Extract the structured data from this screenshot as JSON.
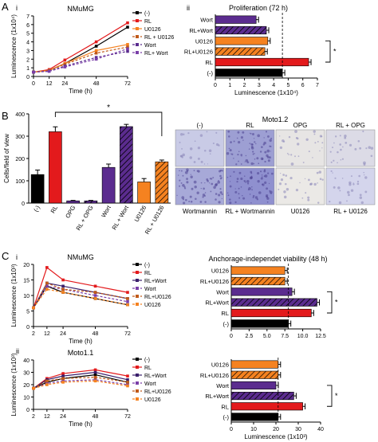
{
  "figure": {
    "panel_labels": [
      "A",
      "B",
      "C"
    ],
    "sub_labels": {
      "A_i": "i",
      "A_ii": "ii",
      "C_i": "i",
      "C_ii": "ii"
    }
  },
  "chart_data": [
    {
      "id": "A_i",
      "type": "line",
      "title": "NMuMG",
      "xlabel": "Time (h)",
      "ylabel": "Luminescence (1x10⁴)",
      "x": [
        0,
        12,
        24,
        48,
        72
      ],
      "x_ticks": [
        "0",
        "12",
        "24",
        "48",
        "72"
      ],
      "ylim": [
        0,
        7
      ],
      "y_ticks": [
        "0",
        "1",
        "2",
        "3",
        "4",
        "5",
        "6",
        "7"
      ],
      "series": [
        {
          "name": "(-)",
          "color": "#000000",
          "values": [
            0.5,
            0.7,
            1.5,
            3.5,
            5.7
          ]
        },
        {
          "name": "RL",
          "color": "#e31a1c",
          "values": [
            0.5,
            0.8,
            1.9,
            4.0,
            6.2
          ]
        },
        {
          "name": "U0126",
          "color": "#f58220",
          "values": [
            0.5,
            0.7,
            1.5,
            3.0,
            3.7
          ]
        },
        {
          "name": "RL + U0126",
          "color": "#c05a1a",
          "values": [
            0.5,
            0.7,
            1.4,
            2.7,
            3.4
          ]
        },
        {
          "name": "Wort",
          "color": "#5b2c8f",
          "values": [
            0.5,
            0.6,
            1.2,
            2.2,
            2.9
          ]
        },
        {
          "name": "RL+ Wort",
          "color": "#7a3fa8",
          "values": [
            0.5,
            0.6,
            1.1,
            2.0,
            3.2
          ]
        }
      ]
    },
    {
      "id": "A_ii",
      "type": "bar",
      "orientation": "horizontal",
      "title": "Proliferation (72 h)",
      "xlabel": "Luminescence (1x10⁴)",
      "xlim": [
        0,
        7
      ],
      "x_ticks": [
        "0",
        "1",
        "2",
        "3",
        "4",
        "5",
        "6",
        "7"
      ],
      "categories": [
        "Wort",
        "RL+Wort",
        "U0126",
        "RL+U0126",
        "RL",
        "(-)"
      ],
      "values": [
        2.8,
        3.5,
        3.6,
        3.4,
        6.4,
        4.6
      ],
      "colors": [
        "#5b2c8f",
        "#5b2c8f",
        "#f58220",
        "#f58220",
        "#e31a1c",
        "#000000"
      ],
      "hatched": [
        false,
        true,
        false,
        true,
        false,
        false
      ],
      "significance": "*"
    },
    {
      "id": "B",
      "type": "bar",
      "ylabel": "Cells/field of view",
      "ylim": [
        0,
        400
      ],
      "y_ticks": [
        "0",
        "100",
        "200",
        "300",
        "400"
      ],
      "categories": [
        "(-)",
        "RL",
        "OPG",
        "RL + OPG",
        "Wort",
        "RL + Wort",
        "U0126",
        "RL + U0126"
      ],
      "values": [
        128,
        320,
        10,
        10,
        160,
        343,
        95,
        185
      ],
      "errors": [
        20,
        22,
        2,
        2,
        15,
        10,
        15,
        8
      ],
      "colors": [
        "#000000",
        "#e31a1c",
        "#5b2c8f",
        "#5b2c8f",
        "#5b2c8f",
        "#5b2c8f",
        "#f58220",
        "#f58220"
      ],
      "hatched": [
        false,
        false,
        false,
        true,
        false,
        true,
        false,
        true
      ],
      "significance": "*"
    },
    {
      "id": "C_i",
      "type": "line",
      "title": "NMuMG",
      "xlabel": "Time (h)",
      "ylabel": "Luminescence (1x10³)",
      "x": [
        2,
        12,
        24,
        48,
        72
      ],
      "x_ticks": [
        "2",
        "12",
        "24",
        "48",
        "72"
      ],
      "ylim": [
        0,
        20
      ],
      "y_ticks": [
        "0",
        "5",
        "10",
        "15",
        "20"
      ],
      "series": [
        {
          "name": "(-)",
          "color": "#000000",
          "values": [
            6,
            13,
            11,
            9,
            7
          ]
        },
        {
          "name": "RL",
          "color": "#e31a1c",
          "values": [
            6,
            19,
            15,
            13,
            11
          ]
        },
        {
          "name": "RL+Wort",
          "color": "#3a1f6b",
          "values": [
            6,
            14,
            13,
            11,
            9
          ]
        },
        {
          "name": "Wort",
          "color": "#7a3fa8",
          "values": [
            6,
            13,
            12,
            10,
            8
          ]
        },
        {
          "name": "RL+U0126",
          "color": "#c05a1a",
          "values": [
            6,
            14,
            12,
            11,
            9
          ]
        },
        {
          "name": "U0126",
          "color": "#f58220",
          "values": [
            6,
            12,
            11,
            9,
            7
          ]
        }
      ]
    },
    {
      "id": "C_i_bar",
      "type": "bar",
      "orientation": "horizontal",
      "title": "Anchorage-independet viability (48 h)",
      "xlim": [
        0,
        12.5
      ],
      "x_ticks": [
        "0",
        "2.5",
        "5.0",
        "7.5",
        "10.0",
        "12.5"
      ],
      "categories": [
        "U0126",
        "RL+U0126",
        "Wort",
        "RL+Wort",
        "RL",
        "(-)"
      ],
      "values": [
        7.5,
        7.5,
        8.5,
        12.0,
        11.2,
        8.0
      ],
      "colors": [
        "#f58220",
        "#f58220",
        "#5b2c8f",
        "#5b2c8f",
        "#e31a1c",
        "#000000"
      ],
      "hatched": [
        false,
        true,
        false,
        true,
        false,
        false
      ],
      "significance": "*"
    },
    {
      "id": "C_ii",
      "type": "line",
      "title": "Moto1.1",
      "xlabel": "Time (h)",
      "ylabel": "Luminescence (1x10³)",
      "x": [
        2,
        12,
        24,
        48,
        72
      ],
      "x_ticks": [
        "2",
        "12",
        "24",
        "48",
        "72"
      ],
      "ylim": [
        0,
        40
      ],
      "y_ticks": [
        "0",
        "10",
        "20",
        "30",
        "40"
      ],
      "series": [
        {
          "name": "(-)",
          "color": "#000000",
          "values": [
            17,
            22,
            25,
            28,
            22
          ]
        },
        {
          "name": "RL",
          "color": "#e31a1c",
          "values": [
            17,
            25,
            29,
            32,
            27
          ]
        },
        {
          "name": "RL+Wort",
          "color": "#3a1f6b",
          "values": [
            17,
            24,
            27,
            30,
            24
          ]
        },
        {
          "name": "Wort",
          "color": "#7a3fa8",
          "values": [
            17,
            21,
            23,
            24,
            20
          ]
        },
        {
          "name": "RL+U0126",
          "color": "#c05a1a",
          "values": [
            17,
            23,
            25,
            26,
            22
          ]
        },
        {
          "name": "U0126",
          "color": "#f58220",
          "values": [
            17,
            20,
            22,
            23,
            19
          ]
        }
      ]
    },
    {
      "id": "C_ii_bar",
      "type": "bar",
      "orientation": "horizontal",
      "xlabel": "Luminescence (1x10³)",
      "xlim": [
        0,
        40
      ],
      "x_ticks": [
        "0",
        "10",
        "20",
        "30",
        "40"
      ],
      "categories": [
        "U0126",
        "RL+U0126",
        "Wort",
        "RL+Wort",
        "RL",
        "(-)"
      ],
      "values": [
        21,
        21,
        20,
        28,
        32,
        21
      ],
      "colors": [
        "#f58220",
        "#f58220",
        "#5b2c8f",
        "#5b2c8f",
        "#e31a1c",
        "#000000"
      ],
      "hatched": [
        false,
        true,
        false,
        true,
        false,
        false
      ],
      "significance": "*"
    }
  ],
  "micrographs": {
    "title": "Moto1.2",
    "top_labels": [
      "(-)",
      "RL",
      "OPG",
      "RL + OPG"
    ],
    "bottom_labels": [
      "Wortmannin",
      "RL + Wortmannin",
      "U0126",
      "RL + U0126"
    ],
    "tile_tones": [
      "#c9cbe6",
      "#9d9fd3",
      "#e7e5e4",
      "#dcdbe6",
      "#a7a9d8",
      "#8f90cf",
      "#ebe9e6",
      "#d4d5ec"
    ]
  }
}
